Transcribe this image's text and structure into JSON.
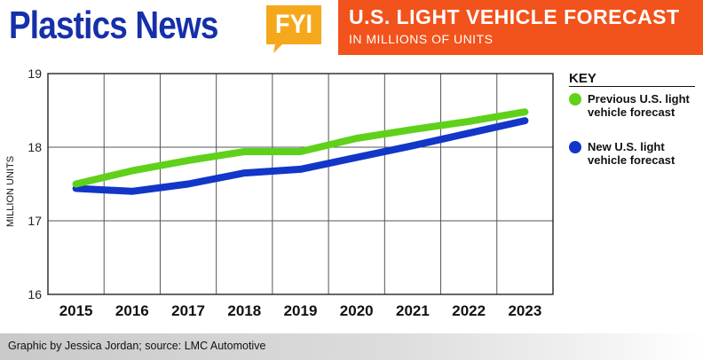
{
  "header": {
    "brand": "Plastics News",
    "badge": "FYI",
    "title": "U.S. LIGHT VEHICLE FORECAST",
    "subtitle": "IN MILLIONS OF UNITS"
  },
  "colors": {
    "brand": "#1530a8",
    "badge": "#f5a81c",
    "title_bg": "#f2521b",
    "previous": "#5fd11b",
    "new": "#1236c8"
  },
  "chart_data": {
    "type": "line",
    "title": "U.S. LIGHT VEHICLE FORECAST",
    "subtitle": "IN MILLIONS OF UNITS",
    "xlabel": "",
    "ylabel": "MILLION UNITS",
    "x": [
      "2015",
      "2016",
      "2017",
      "2018",
      "2019",
      "2020",
      "2021",
      "2022",
      "2023"
    ],
    "ylim": [
      16,
      19
    ],
    "yticks": [
      16,
      17,
      18,
      19
    ],
    "grid": true,
    "legend": "right",
    "series": [
      {
        "name": "Previous U.S. light vehicle forecast",
        "color": "#5fd11b",
        "values": [
          17.5,
          17.68,
          17.82,
          17.94,
          17.94,
          18.12,
          18.24,
          18.35,
          18.48
        ]
      },
      {
        "name": "New U.S. light vehicle forecast",
        "color": "#1236c8",
        "values": [
          17.44,
          17.4,
          17.5,
          17.65,
          17.7,
          17.86,
          18.02,
          18.19,
          18.36
        ]
      }
    ]
  },
  "key": {
    "title": "KEY",
    "items": [
      {
        "label": "Previous U.S. light vehicle forecast"
      },
      {
        "label": "New U.S. light vehicle forecast"
      }
    ]
  },
  "footer": {
    "credit": "Graphic by Jessica Jordan; source: LMC Automotive"
  }
}
